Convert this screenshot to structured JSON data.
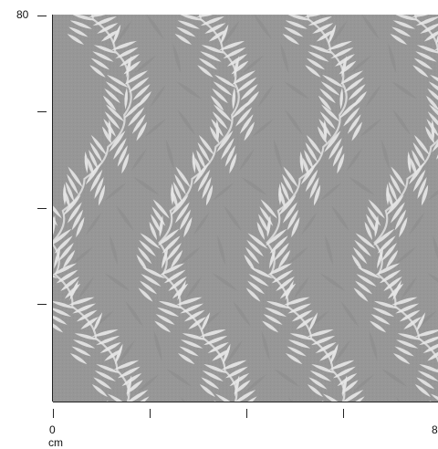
{
  "image": {
    "description_icon": "leaf-pattern-swatch",
    "background_color": "#979797",
    "leaf_color": "#e6e6e6",
    "shadow_leaf_color": "#8a8a8a"
  },
  "axis": {
    "y_top_label": "80",
    "x_start_label": "0",
    "x_end_label": "8",
    "unit": "cm"
  }
}
